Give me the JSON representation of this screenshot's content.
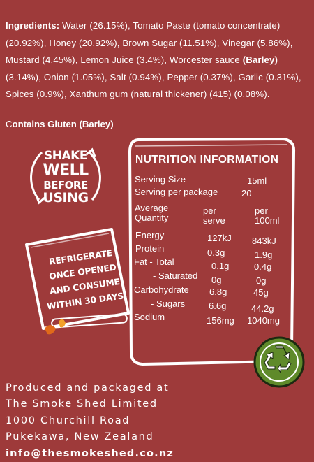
{
  "ingredients": {
    "heading": "Ingredients:",
    "part1": " Water (26.15%), Tomato Paste (tomato concentrate) (20.92%), Honey (20.92%), Brown Sugar (11.51%), Vinegar (5.86%), Mustard (4.45%), Lemon Juice (3.4%), Worcester sauce ",
    "barley": "(Barley)",
    "part2": " (3.14%), Onion (1.05%), Salt (0.94%), Pepper (0.37%), Garlic (0.31%), Spices (0.9%), Xanthum gum (natural thickener) (415) (0.08%).",
    "contains_c": "C",
    "contains_rest": "ontains Gluten (Barley)"
  },
  "shake": {
    "line1": "SHAKE",
    "line2": "WELL",
    "line3": "BEFORE",
    "line4": "USING"
  },
  "fridge": {
    "line1": "REFRIGERATE",
    "line2": "ONCE OPENED",
    "line3": "AND CONSUME",
    "line4": "WITHIN 30 DAYS."
  },
  "nutrition": {
    "title": "NUTRITION INFORMATION",
    "serving_size_label": "Serving Size",
    "serving_size_value": "15ml",
    "servings_label": "Serving per package",
    "servings_value": "20",
    "avg_label_1": "Average",
    "avg_label_2": "Quantity",
    "col1_1": "per",
    "col1_2": "serve",
    "col2_1": "per",
    "col2_2": "100ml",
    "rows": [
      {
        "label": "Energy",
        "serve": "127kJ",
        "per100": "843kJ"
      },
      {
        "label": "Protein",
        "serve": "0.3g",
        "per100": "1.9g"
      },
      {
        "label": "Fat - Total",
        "serve": "0.1g",
        "per100": "0.4g"
      },
      {
        "label": "- Saturated",
        "serve": "0g",
        "per100": "0g"
      },
      {
        "label": "Carbohydrate",
        "serve": "6.8g",
        "per100": "45g"
      },
      {
        "label": "- Sugars",
        "serve": "6.6g",
        "per100": "44.2g"
      },
      {
        "label": "Sodium",
        "serve": "156mg",
        "per100": "1040mg"
      }
    ]
  },
  "footer": {
    "line1": "Produced and packaged at",
    "line2": "The Smoke Shed Limited",
    "line3": "1000 Churchill Road",
    "line4": "Pukekawa, New Zealand",
    "email": "info@thesmokeshed.co.nz"
  },
  "colors": {
    "background": "#9e3a3a",
    "recycle_green": "#5f8a2a"
  }
}
